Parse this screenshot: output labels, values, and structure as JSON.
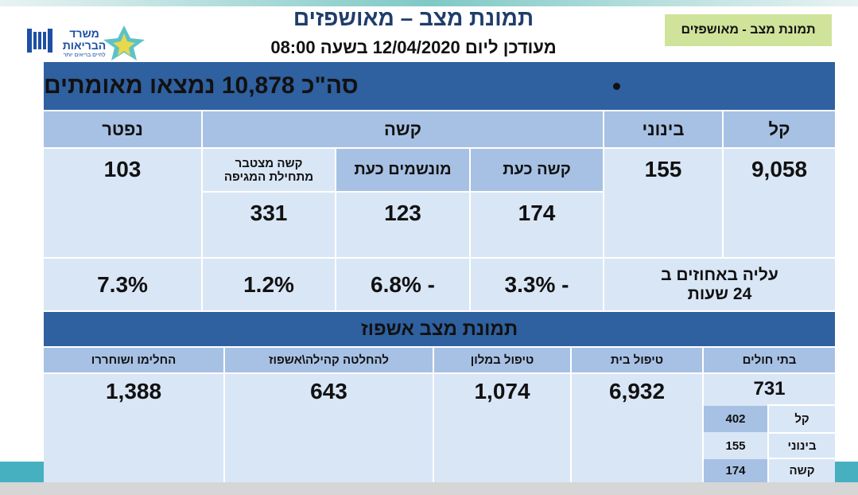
{
  "tag": "תמונת מצב - מאושפזים",
  "header": {
    "title": "תמונת מצב – מאושפזים",
    "subtitle": "מעודכן ליום 12/04/2020 בשעה 08:00"
  },
  "logo": {
    "name_line1": "משרד",
    "name_line2": "הבריאות",
    "slogan": "לחיים בריאים יותר"
  },
  "confirmed": {
    "banner": "סה\"כ 10,878 נמצאו מאומתים",
    "columns": [
      "קל",
      "בינוני",
      "קשה",
      "נפטר"
    ],
    "severe_columns": [
      "קשה כעת",
      "מונשמים כעת",
      "קשה מצטבר מתחילת המגיפה"
    ],
    "values": {
      "mild": "9,058",
      "moderate": "155",
      "deceased": "103",
      "severe_now": "174",
      "ventilated": "123",
      "severe_cumulative": "331"
    },
    "change_label": "עליה באחוזים ב 24 שעות",
    "changes": [
      "- 3.3%",
      "- 6.8%",
      "1.2%",
      "7.3%"
    ]
  },
  "hospitalization": {
    "banner": "תמונת מצב אשפוז",
    "columns": [
      "בתי חולים",
      "טיפול בית",
      "טיפול במלון",
      "להחלטה קהילה\\אשפוז",
      "החלימו ושוחררו"
    ],
    "values": [
      "731",
      "6,932",
      "1,074",
      "643",
      "1,388"
    ],
    "hospital_breakdown": [
      {
        "label": "קל",
        "value": "402"
      },
      {
        "label": "בינוני",
        "value": "155"
      },
      {
        "label": "קשה",
        "value": "174"
      }
    ]
  }
}
